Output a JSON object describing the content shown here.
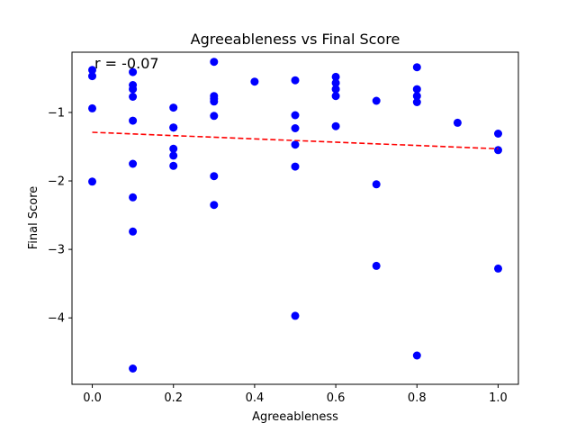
{
  "chart_data": {
    "type": "scatter",
    "title": "Agreeableness vs Final Score",
    "xlabel": "Agreeableness",
    "ylabel": "Final Score",
    "annotation": "r = -0.07",
    "xlim": [
      -0.05,
      1.05
    ],
    "ylim": [
      -4.97,
      -0.12
    ],
    "xticks": [
      0.0,
      0.2,
      0.4,
      0.6,
      0.8,
      1.0
    ],
    "xtick_labels": [
      "0.0",
      "0.2",
      "0.4",
      "0.6",
      "0.8",
      "1.0"
    ],
    "yticks": [
      -1,
      -2,
      -3,
      -4
    ],
    "ytick_labels": [
      "−1",
      "−2",
      "−3",
      "−4"
    ],
    "grid": false,
    "point_color": "#0000ff",
    "trend_color": "#ff0000",
    "trend_line": {
      "x": [
        0.0,
        1.0
      ],
      "y": [
        -1.29,
        -1.53
      ]
    },
    "x": [
      0.0,
      0.0,
      0.0,
      0.0,
      0.1,
      0.1,
      0.1,
      0.1,
      0.1,
      0.1,
      0.1,
      0.1,
      0.1,
      0.2,
      0.2,
      0.2,
      0.2,
      0.2,
      0.2,
      0.3,
      0.3,
      0.3,
      0.3,
      0.3,
      0.3,
      0.3,
      0.4,
      0.5,
      0.5,
      0.5,
      0.5,
      0.5,
      0.5,
      0.6,
      0.6,
      0.6,
      0.6,
      0.6,
      0.7,
      0.7,
      0.7,
      0.8,
      0.8,
      0.8,
      0.8,
      0.8,
      0.9,
      1.0,
      1.0,
      1.0
    ],
    "y": [
      -0.38,
      -0.47,
      -0.94,
      -2.01,
      -0.41,
      -0.6,
      -0.66,
      -0.77,
      -1.12,
      -1.75,
      -2.24,
      -2.74,
      -4.74,
      -0.93,
      -1.22,
      -1.53,
      -1.63,
      -1.78,
      -1.22,
      -0.26,
      -0.76,
      -0.84,
      -1.05,
      -1.93,
      -2.35,
      -0.8,
      -0.55,
      -0.53,
      -1.04,
      -1.23,
      -1.47,
      -1.79,
      -3.97,
      -0.48,
      -0.57,
      -0.66,
      -0.76,
      -1.2,
      -0.83,
      -2.05,
      -3.24,
      -0.34,
      -0.66,
      -0.76,
      -0.85,
      -4.55,
      -1.15,
      -1.31,
      -1.55,
      -3.28
    ]
  }
}
